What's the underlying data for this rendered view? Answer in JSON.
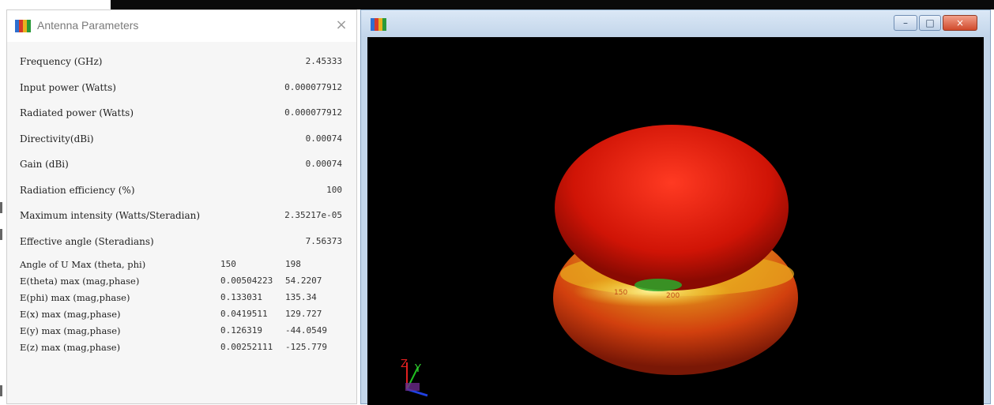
{
  "param_window": {
    "title": "Antenna Parameters",
    "close_glyph": "×",
    "params": [
      {
        "label": "Frequency (GHz)",
        "value": "2.45333"
      },
      {
        "label": "Input power (Watts)",
        "value": "0.000077912"
      },
      {
        "label": "Radiated power (Watts)",
        "value": "0.000077912"
      },
      {
        "label": "Directivity(dBi)",
        "value": "0.00074"
      },
      {
        "label": "Gain (dBi)",
        "value": "0.00074"
      },
      {
        "label": "Radiation efficiency (%)",
        "value": "100"
      },
      {
        "label": "Maximum intensity (Watts/Steradian)",
        "value": "2.35217e-05"
      },
      {
        "label": "Effective angle (Steradians)",
        "value": "7.56373"
      }
    ],
    "maxima": [
      {
        "label": "Angle of U Max (theta, phi)",
        "mag": "150",
        "phase": "198"
      },
      {
        "label": "E(theta) max (mag,phase)",
        "mag": "0.00504223",
        "phase": "54.2207"
      },
      {
        "label": "E(phi) max (mag,phase)",
        "mag": "0.133031",
        "phase": "135.34"
      },
      {
        "label": "E(x) max (mag,phase)",
        "mag": "0.0419511",
        "phase": "129.727"
      },
      {
        "label": "E(y) max (mag,phase)",
        "mag": "0.126319",
        "phase": "-44.0549"
      },
      {
        "label": "E(z) max (mag,phase)",
        "mag": "0.00252111",
        "phase": "-125.779"
      }
    ]
  },
  "viewer_window": {
    "buttons": {
      "minimize": "–",
      "maximize": "□",
      "close": "×"
    },
    "axes": {
      "z_label": "Z",
      "y_label": "Y"
    },
    "pattern_labels": {
      "left": "150",
      "right": "200"
    }
  },
  "colors": {
    "pattern_red": "#e01808",
    "pattern_yellow": "#f4e030",
    "pattern_green": "#2aa82a",
    "viewport_bg": "#000000"
  }
}
